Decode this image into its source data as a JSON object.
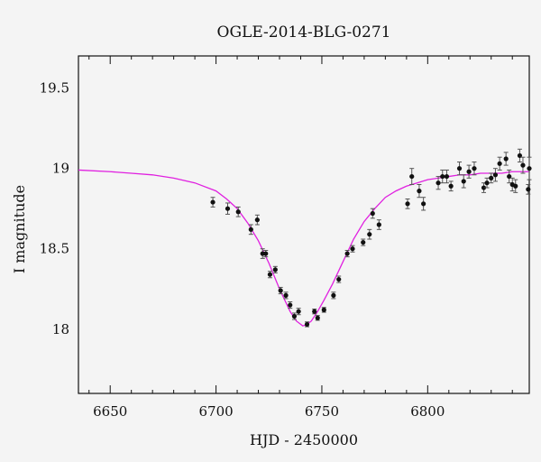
{
  "chart_data": {
    "type": "scatter",
    "title": "OGLE-2014-BLG-0271",
    "xlabel": "HJD - 2450000",
    "ylabel": "I magnitude",
    "xlim": [
      6635,
      6848
    ],
    "ylim": [
      19.7,
      17.6
    ],
    "y_inverted": true,
    "xticks": [
      6650,
      6700,
      6750,
      6800
    ],
    "yticks": [
      18,
      18.5,
      19,
      19.5
    ],
    "grid": false,
    "colors": {
      "model": "#e020e0",
      "points": "#111111",
      "frame": "#111111"
    },
    "series": [
      {
        "kind": "points",
        "x": [
          6698.5,
          6705.5,
          6710.5,
          6716.5,
          6719.5,
          6722.0,
          6723.5,
          6725.5,
          6728.0,
          6730.5,
          6733.0,
          6735.0,
          6737.0,
          6739.0,
          6743.0,
          6746.5,
          6748.0,
          6751.0,
          6755.5,
          6758.0,
          6762.0,
          6764.5,
          6769.5,
          6772.5,
          6774.0,
          6777.0,
          6790.5,
          6792.5,
          6796.0,
          6798.0,
          6805.0,
          6807.0,
          6809.0,
          6811.0,
          6815.0,
          6817.0,
          6819.5,
          6822.0,
          6826.5,
          6828.0,
          6830.0,
          6832.0,
          6834.0,
          6837.0,
          6838.5,
          6840.0,
          6841.5,
          6843.5,
          6845.0,
          6847.5,
          6848.0
        ],
        "y": [
          18.79,
          18.75,
          18.73,
          18.62,
          18.68,
          18.47,
          18.47,
          18.34,
          18.37,
          18.24,
          18.21,
          18.15,
          18.08,
          18.11,
          18.03,
          18.11,
          18.07,
          18.12,
          18.21,
          18.31,
          18.47,
          18.5,
          18.54,
          18.59,
          18.72,
          18.65,
          18.78,
          18.95,
          18.86,
          18.78,
          18.91,
          18.95,
          18.95,
          18.89,
          19.0,
          18.92,
          18.98,
          19.0,
          18.88,
          18.91,
          18.94,
          18.96,
          19.03,
          19.06,
          18.95,
          18.9,
          18.89,
          19.08,
          19.02,
          18.87,
          19.0
        ],
        "err": [
          0.03,
          0.035,
          0.03,
          0.03,
          0.03,
          0.03,
          0.02,
          0.02,
          0.02,
          0.02,
          0.02,
          0.02,
          0.02,
          0.02,
          0.015,
          0.015,
          0.015,
          0.015,
          0.02,
          0.02,
          0.02,
          0.02,
          0.02,
          0.03,
          0.03,
          0.03,
          0.03,
          0.05,
          0.04,
          0.04,
          0.04,
          0.04,
          0.04,
          0.03,
          0.04,
          0.04,
          0.04,
          0.04,
          0.03,
          0.03,
          0.03,
          0.04,
          0.04,
          0.04,
          0.04,
          0.04,
          0.04,
          0.04,
          0.05,
          0.03,
          0.07
        ]
      },
      {
        "kind": "model",
        "x": [
          6635,
          6650,
          6660,
          6670,
          6680,
          6690,
          6700,
          6705,
          6710,
          6715,
          6720,
          6725,
          6730,
          6735,
          6738,
          6741,
          6743,
          6745,
          6748,
          6751,
          6755,
          6760,
          6765,
          6770,
          6775,
          6780,
          6785,
          6790,
          6795,
          6800,
          6805,
          6810,
          6815,
          6820,
          6825,
          6830,
          6835,
          6840,
          6848
        ],
        "y": [
          18.99,
          18.98,
          18.97,
          18.96,
          18.94,
          18.91,
          18.86,
          18.81,
          18.75,
          18.66,
          18.55,
          18.41,
          18.25,
          18.11,
          18.05,
          18.02,
          18.03,
          18.05,
          18.11,
          18.18,
          18.28,
          18.42,
          18.56,
          18.67,
          18.75,
          18.82,
          18.86,
          18.89,
          18.91,
          18.93,
          18.94,
          18.95,
          18.96,
          18.96,
          18.97,
          18.97,
          18.97,
          18.98,
          18.98
        ]
      }
    ]
  }
}
